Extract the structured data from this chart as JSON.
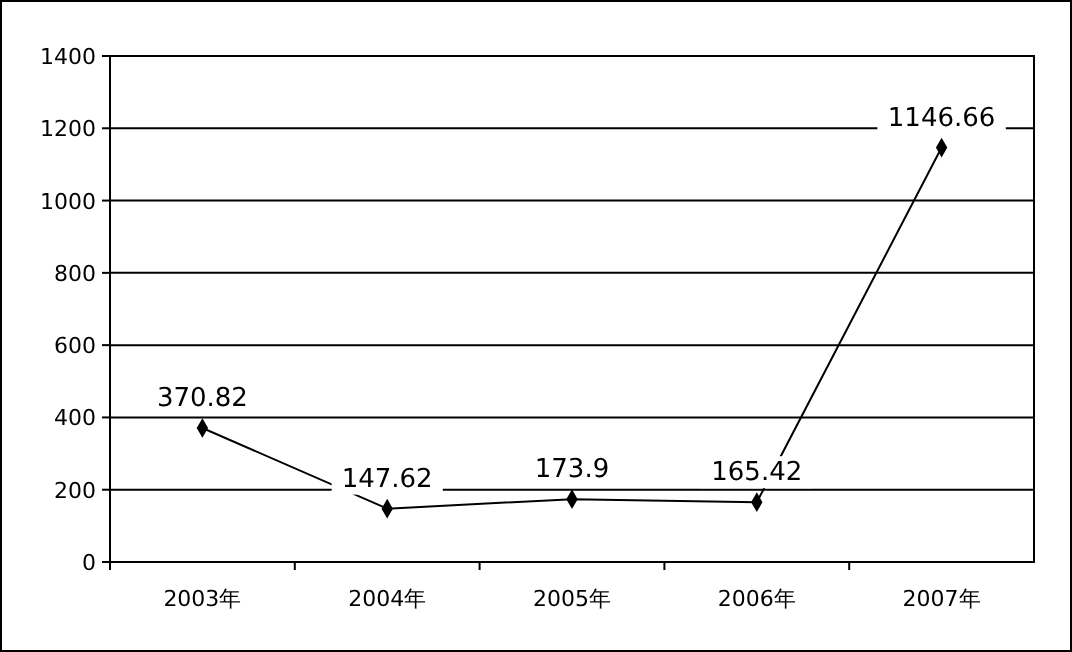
{
  "chart_data": {
    "type": "line",
    "categories": [
      "2003年",
      "2004年",
      "2005年",
      "2006年",
      "2007年"
    ],
    "series": [
      {
        "color": "#000000",
        "values": [
          370.82,
          147.62,
          173.9,
          165.42,
          1146.66
        ]
      }
    ],
    "ylim": [
      0,
      1400
    ],
    "yticks": [
      0,
      200,
      400,
      600,
      800,
      1000,
      1200,
      1400
    ],
    "grid": "y",
    "marker": "diamond",
    "line_style": "solid",
    "data_labels": true
  }
}
